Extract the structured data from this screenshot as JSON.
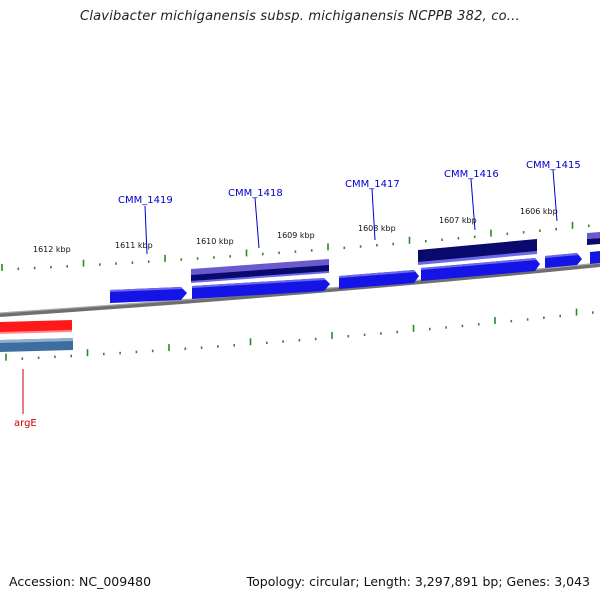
{
  "title": "Clavibacter michiganensis subsp. michiganensis NCPPB 382, co…",
  "footer": {
    "accession": "Accession: NC_009480",
    "summary": "Topology: circular; Length: 3,297,891 bp; Genes: 3,043"
  },
  "ticks": [
    {
      "label": "1612 kbp"
    },
    {
      "label": "1611 kbp"
    },
    {
      "label": "1610 kbp"
    },
    {
      "label": "1609 kbp"
    },
    {
      "label": "1608 kbp"
    },
    {
      "label": "1607 kbp"
    },
    {
      "label": "1606 kbp"
    }
  ],
  "genes": [
    {
      "name": "CMM_1419",
      "color": "#0000cc"
    },
    {
      "name": "CMM_1418",
      "color": "#0000cc"
    },
    {
      "name": "CMM_1417",
      "color": "#0000cc"
    },
    {
      "name": "CMM_1416",
      "color": "#0000cc"
    },
    {
      "name": "CMM_1415",
      "color": "#0000cc"
    },
    {
      "name": "argE",
      "color": "#cc0000"
    }
  ],
  "colors": {
    "forward_cds": "#1414e6",
    "forward_cds_light": "#6a6ae8",
    "gene_dark": "#0a0a6e",
    "reverse_gene": "#ff1a1a",
    "reverse_gene_2": "#3c6ea0",
    "backbone": "#808080",
    "tick": "#2a8a2a"
  }
}
